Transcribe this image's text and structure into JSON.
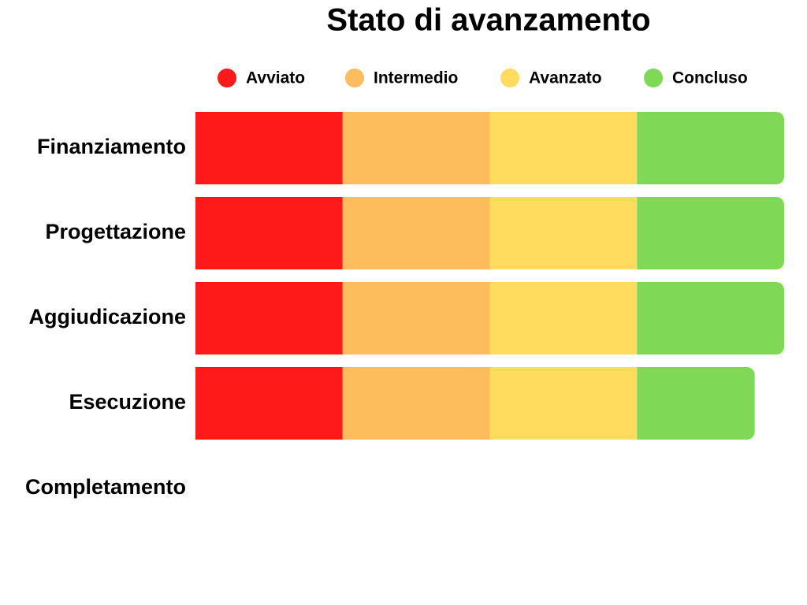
{
  "chart_data": {
    "type": "bar",
    "orientation": "horizontal",
    "stacked": true,
    "title": "Stato di avanzamento",
    "categories": [
      "Finanziamento",
      "Progettazione",
      "Aggiudicazione",
      "Esecuzione",
      "Completamento"
    ],
    "series": [
      {
        "name": "Avviato",
        "color": "#ff1a1a",
        "values": [
          1,
          1,
          1,
          1,
          0
        ]
      },
      {
        "name": "Intermedio",
        "color": "#fdbd5c",
        "values": [
          1,
          1,
          1,
          1,
          0
        ]
      },
      {
        "name": "Avanzato",
        "color": "#ffdc5e",
        "values": [
          1,
          1,
          1,
          1,
          0
        ]
      },
      {
        "name": "Concluso",
        "color": "#7fd957",
        "values": [
          1,
          1,
          1,
          0.8,
          0
        ]
      }
    ],
    "xlim": [
      0,
      4
    ],
    "legend": "top"
  }
}
